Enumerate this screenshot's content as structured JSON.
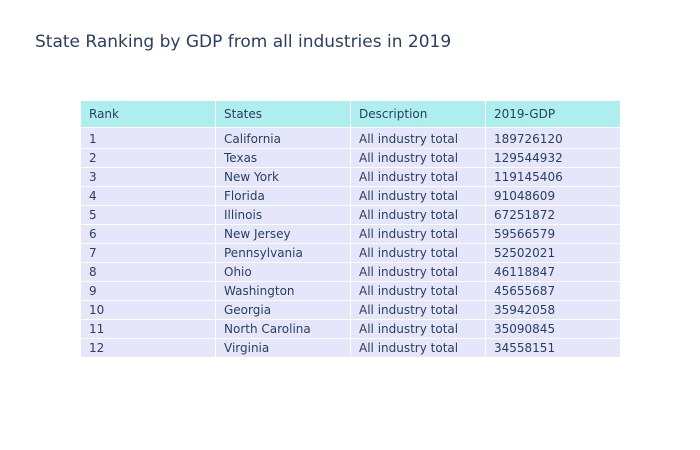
{
  "colors": {
    "title": "#2a3f5f",
    "header_fill": "#afeeee",
    "cell_fill": "#e6e6fa",
    "line": "#ffffff",
    "text": "#2a3f5f"
  },
  "chart_data": {
    "type": "table",
    "title": "State Ranking by GDP from all industries in 2019",
    "columns": [
      "Rank",
      "States",
      "Description",
      "2019-GDP"
    ],
    "rows": [
      [
        "1",
        "California",
        "All industry total",
        "189726120"
      ],
      [
        "2",
        "Texas",
        "All industry total",
        "129544932"
      ],
      [
        "3",
        "New York",
        "All industry total",
        "119145406"
      ],
      [
        "4",
        "Florida",
        "All industry total",
        "91048609"
      ],
      [
        "5",
        "Illinois",
        "All industry total",
        "67251872"
      ],
      [
        "6",
        "New Jersey",
        "All industry total",
        "59566579"
      ],
      [
        "7",
        "Pennsylvania",
        "All industry total",
        "52502021"
      ],
      [
        "8",
        "Ohio",
        "All industry total",
        "46118847"
      ],
      [
        "9",
        "Washington",
        "All industry total",
        "45655687"
      ],
      [
        "10",
        "Georgia",
        "All industry total",
        "35942058"
      ],
      [
        "11",
        "North Carolina",
        "All industry total",
        "35090845"
      ],
      [
        "12",
        "Virginia",
        "All industry total",
        "34558151"
      ]
    ]
  }
}
